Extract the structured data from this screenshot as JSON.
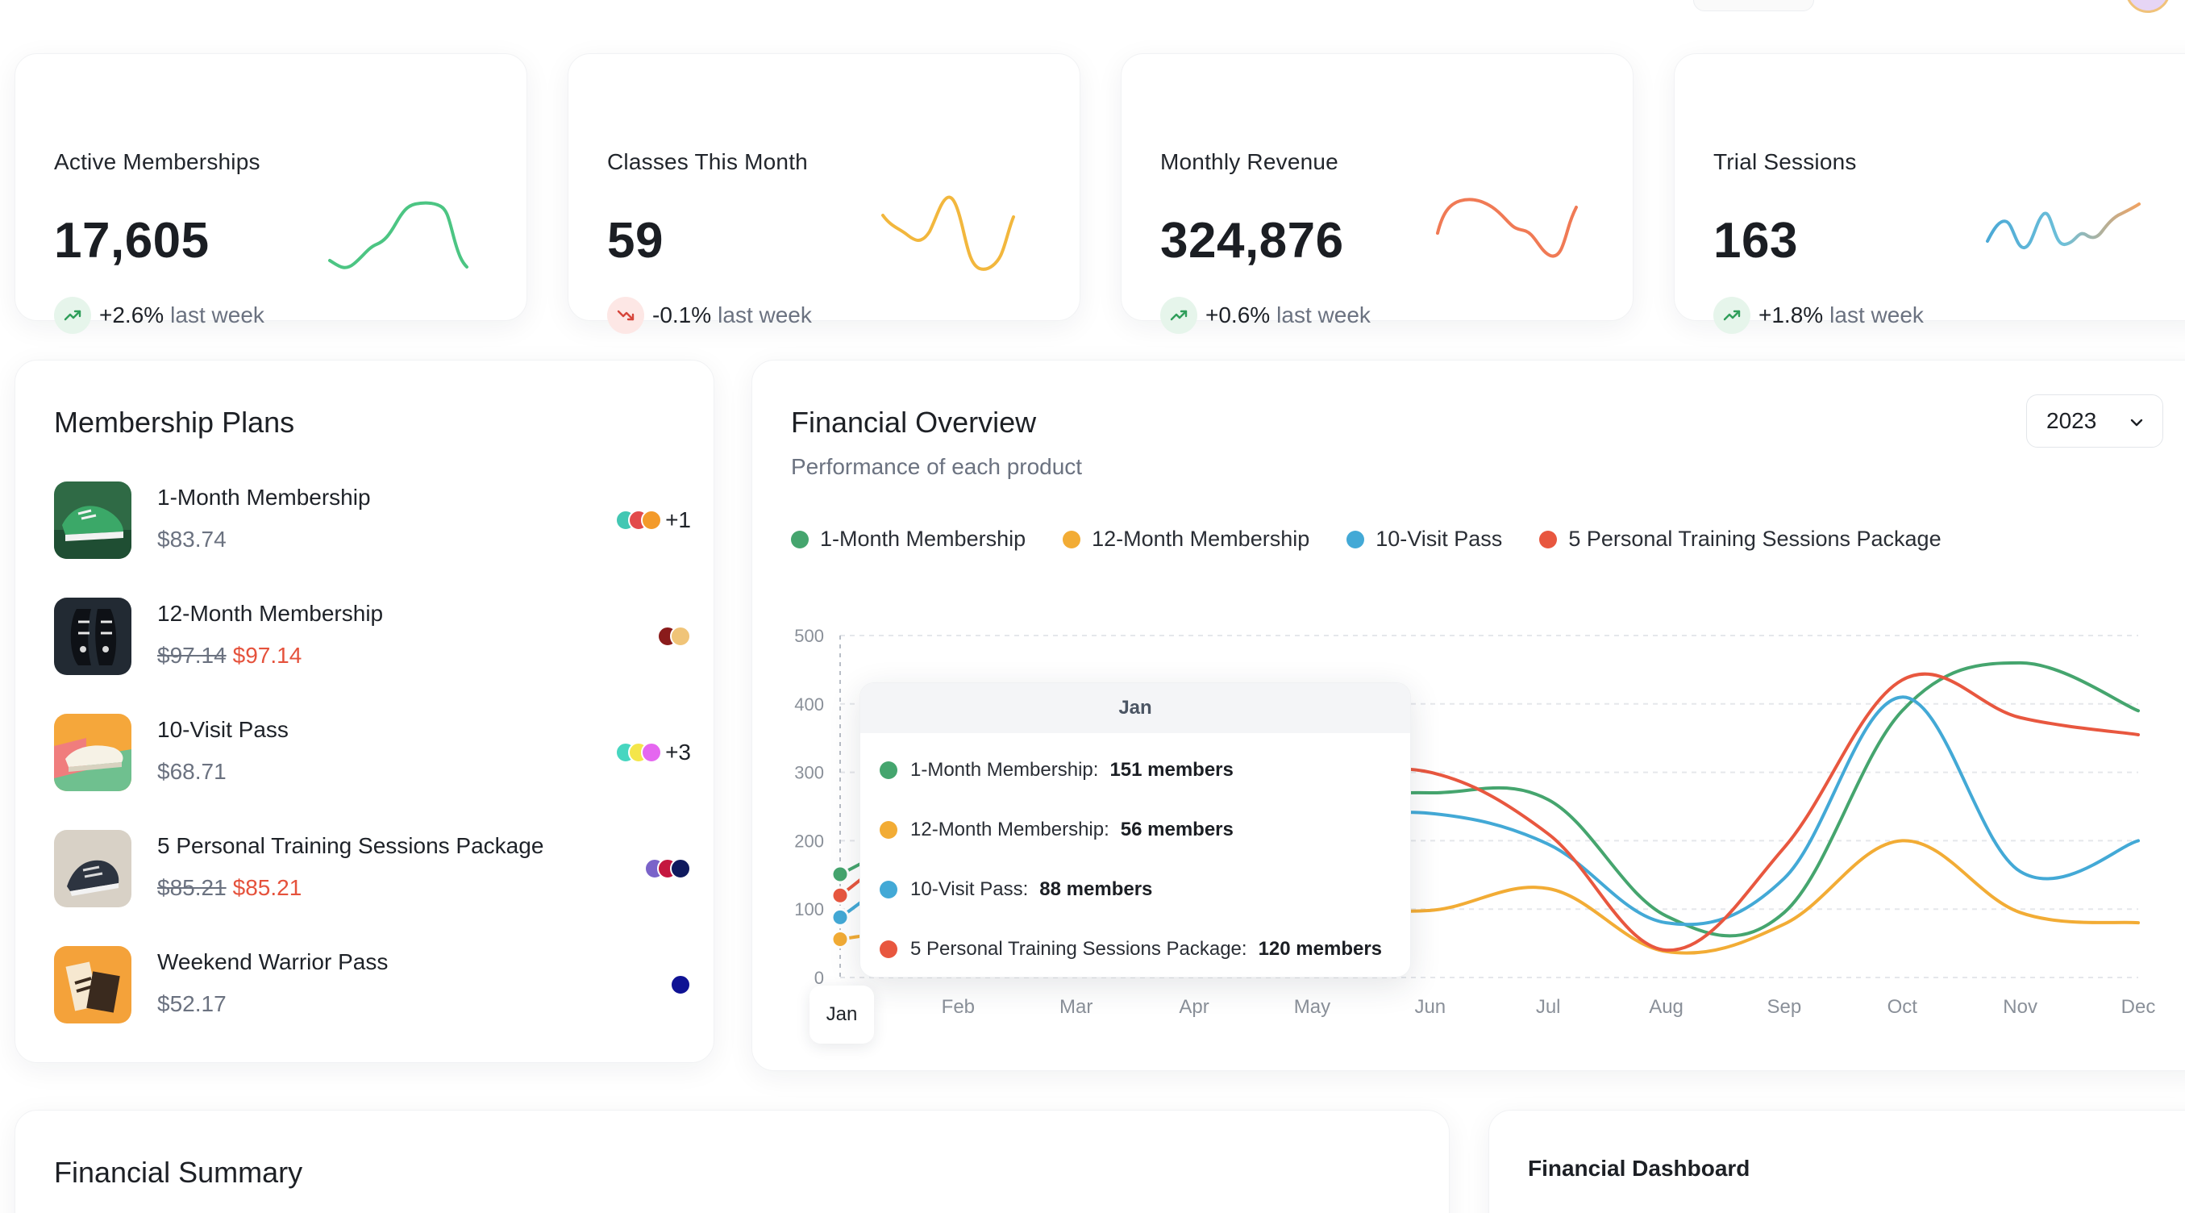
{
  "stats": [
    {
      "title": "Active Memberships",
      "value": "17,605",
      "change": "+2.6%",
      "suffix": "last week",
      "direction": "up",
      "spark_color": "#4cc583"
    },
    {
      "title": "Classes This Month",
      "value": "59",
      "change": "-0.1%",
      "suffix": "last week",
      "direction": "down",
      "spark_color": "#f2b73d"
    },
    {
      "title": "Monthly Revenue",
      "value": "324,876",
      "change": "+0.6%",
      "suffix": "last week",
      "direction": "up",
      "spark_color": "#f07a55"
    },
    {
      "title": "Trial Sessions",
      "value": "163",
      "change": "+1.8%",
      "suffix": "last week",
      "direction": "up",
      "spark_color": "gradient"
    }
  ],
  "plans": {
    "heading": "Membership Plans",
    "items": [
      {
        "name": "1-Month Membership",
        "price": "$83.74",
        "old_price": "",
        "sale_price": "",
        "swatches": [
          "#43c7b3",
          "#e24b4b",
          "#f39a2a"
        ],
        "more": "+1"
      },
      {
        "name": "12-Month Membership",
        "price": "",
        "old_price": "$97.14",
        "sale_price": "$97.14",
        "swatches": [
          "#8a1b1b",
          "#f0c478"
        ],
        "more": ""
      },
      {
        "name": "10-Visit Pass",
        "price": "$68.71",
        "old_price": "",
        "sale_price": "",
        "swatches": [
          "#47d6c0",
          "#f4e64a",
          "#e567f0"
        ],
        "more": "+3"
      },
      {
        "name": "5 Personal Training Sessions Package",
        "price": "",
        "old_price": "$85.21",
        "sale_price": "$85.21",
        "swatches": [
          "#7a63c9",
          "#c4173f",
          "#0f1a5e"
        ],
        "more": ""
      },
      {
        "name": "Weekend Warrior Pass",
        "price": "$52.17",
        "old_price": "",
        "sale_price": "",
        "swatches": [
          "#0f1294"
        ],
        "more": ""
      }
    ]
  },
  "overview": {
    "heading": "Financial Overview",
    "subtitle": "Performance of each product",
    "year": "2023"
  },
  "chart_data": {
    "type": "line",
    "x": [
      "Jan",
      "Feb",
      "Mar",
      "Apr",
      "May",
      "Jun",
      "Jul",
      "Aug",
      "Sep",
      "Oct",
      "Nov",
      "Dec"
    ],
    "ylim": [
      0,
      500
    ],
    "yticks": [
      "0",
      "100",
      "200",
      "300",
      "400",
      "500"
    ],
    "grid": true,
    "legend": "top-left",
    "series": [
      {
        "name": "1-Month Membership",
        "color": "#45a56e",
        "values": [
          151,
          230,
          240,
          260,
          265,
          270,
          260,
          90,
          95,
          390,
          460,
          390
        ]
      },
      {
        "name": "12-Month Membership",
        "color": "#f2ac35",
        "values": [
          56,
          80,
          90,
          100,
          105,
          98,
          130,
          38,
          78,
          200,
          95,
          80
        ]
      },
      {
        "name": "10-Visit Pass",
        "color": "#43a9d6",
        "values": [
          88,
          200,
          215,
          225,
          230,
          240,
          195,
          80,
          145,
          410,
          155,
          200
        ]
      },
      {
        "name": "5 Personal Training Sessions Package",
        "color": "#e8573f",
        "values": [
          120,
          240,
          260,
          280,
          290,
          300,
          210,
          40,
          190,
          435,
          380,
          355
        ]
      }
    ]
  },
  "tooltip": {
    "month": "Jan",
    "rows": [
      {
        "label": "1-Month Membership:",
        "value": "151 members",
        "color": "#45a56e"
      },
      {
        "label": "12-Month Membership:",
        "value": "56 members",
        "color": "#f2ac35"
      },
      {
        "label": "10-Visit Pass:",
        "value": "88 members",
        "color": "#43a9d6"
      },
      {
        "label": "5 Personal Training Sessions Package:",
        "value": "120 members",
        "color": "#e8573f"
      }
    ]
  },
  "summary": {
    "heading": "Financial Summary"
  },
  "dashboard": {
    "heading": "Financial Dashboard"
  }
}
